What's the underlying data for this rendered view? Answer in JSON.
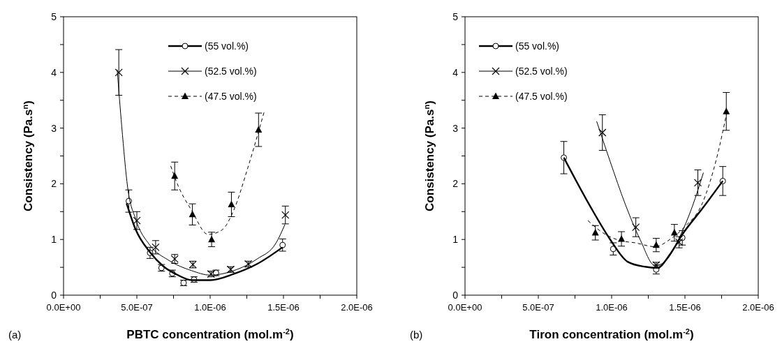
{
  "chart_data": [
    {
      "type": "scatter",
      "xlabel": "PBTC concentration (mol.m$^{-2}$)",
      "ylabel": "Consistency (Pa.s$^{n}$)",
      "annotations": [
        "(a)"
      ],
      "legend": "top right",
      "xlim": [
        0,
        2e-06
      ],
      "xticks": [
        {
          "value": 0,
          "label": "0.0E+00"
        },
        {
          "value": 2.5e-07,
          "label": null
        },
        {
          "value": 5e-07,
          "label": "5.0E-07"
        },
        {
          "value": 7.5e-07,
          "label": null
        },
        {
          "value": 1e-06,
          "label": "1.0E-06"
        },
        {
          "value": 1.25e-06,
          "label": null
        },
        {
          "value": 1.5e-06,
          "label": "1.5E-06"
        },
        {
          "value": 1.75e-06,
          "label": null
        },
        {
          "value": 2e-06,
          "label": "2.0E-06"
        }
      ],
      "ylim": [
        0,
        5
      ],
      "yticks": [
        0,
        {
          "value": 0.5,
          "label": null
        },
        1,
        {
          "value": 1.5,
          "label": null
        },
        2,
        {
          "value": 2.5,
          "label": null
        },
        3,
        {
          "value": 3.5,
          "label": null
        },
        4,
        {
          "value": 4.5,
          "label": null
        },
        5
      ],
      "series": [
        {
          "type": "scatter",
          "name": "(55 vol.%)",
          "color": "#000000",
          "marker": "circle",
          "line_style": "solid",
          "x": [
            4.45e-07,
            5.9e-07,
            6.68e-07,
            7.42e-07,
            8.19e-07,
            8.9e-07,
            1.04e-06,
            1.494e-06
          ],
          "values": [
            1.69,
            0.76,
            0.49,
            0.39,
            0.22,
            0.28,
            0.4,
            0.9
          ],
          "errors": [
            0.2,
            0.1,
            0.06,
            0.06,
            0.05,
            0.05,
            0.05,
            0.11
          ]
        },
        {
          "type": "scatter",
          "name": "(52.5 vol.%)",
          "color": "#000000",
          "marker": "cross",
          "line_style": "solid",
          "x": [
            3.77e-07,
            5e-07,
            6.28e-07,
            7.58e-07,
            8.82e-07,
            1.006e-06,
            1.14e-06,
            1.26e-06,
            1.513e-06
          ],
          "values": [
            4.0,
            1.34,
            0.86,
            0.65,
            0.55,
            0.38,
            0.46,
            0.56,
            1.44
          ],
          "errors": [
            0.41,
            0.16,
            0.12,
            0.08,
            0.06,
            0.05,
            0.05,
            0.05,
            0.16
          ]
        },
        {
          "type": "scatter",
          "name": "(47.5 vol.%)",
          "color": "#000000",
          "marker": "triangle",
          "line_style": "dashed",
          "x": [
            7.58e-07,
            8.79e-07,
            1.01e-06,
            1.145e-06,
            1.33e-06
          ],
          "values": [
            2.14,
            1.45,
            1.0,
            1.63,
            2.97
          ],
          "errors": [
            0.25,
            0.19,
            0.13,
            0.22,
            0.3
          ]
        },
        {
          "type": "line",
          "color": "#000000",
          "line_style": "solid",
          "x": [
            4.3e-07,
            4.9e-07,
            5.9e-07,
            6.8e-07,
            7.8e-07,
            8.74e-07,
            1e-06,
            1.16e-06,
            1.32e-06,
            1.494e-06
          ],
          "values": [
            1.65,
            1.19,
            0.77,
            0.52,
            0.36,
            0.27,
            0.27,
            0.38,
            0.56,
            0.86
          ]
        },
        {
          "type": "line",
          "color": "#000000",
          "line_style": "solid",
          "x": [
            3.66e-07,
            3.97e-07,
            4.37e-07,
            4.93e-07,
            5.88e-07,
            7.15e-07,
            8.74e-07,
            1e-06,
            1.16e-06,
            1.32e-06,
            1.45e-06,
            1.51e-06
          ],
          "values": [
            4.05,
            3.03,
            1.94,
            1.36,
            0.9,
            0.63,
            0.44,
            0.36,
            0.44,
            0.65,
            0.94,
            1.27
          ]
        },
        {
          "type": "line",
          "color": "#000000",
          "line_style": "dashed",
          "x": [
            7.31e-07,
            7.79e-07,
            8.74e-07,
            9.86e-07,
            1.08e-06,
            1.16e-06,
            1.256e-06,
            1.367e-06
          ],
          "values": [
            2.32,
            1.98,
            1.52,
            1.09,
            1.17,
            1.52,
            2.28,
            3.28
          ]
        }
      ]
    },
    {
      "type": "scatter",
      "xlabel": "Tiron concentration (mol.m$^{-2}$)",
      "ylabel": "Consistency (Pa.s$^{n}$)",
      "annotations": [
        "(b)"
      ],
      "legend": "top left",
      "xlim": [
        0,
        2e-06
      ],
      "xticks": [
        {
          "value": 0,
          "label": "0.0E+00"
        },
        {
          "value": 2.5e-07,
          "label": null
        },
        {
          "value": 5e-07,
          "label": "5.0E-07"
        },
        {
          "value": 7.5e-07,
          "label": null
        },
        {
          "value": 1e-06,
          "label": "1.0E-06"
        },
        {
          "value": 1.25e-06,
          "label": null
        },
        {
          "value": 1.5e-06,
          "label": "1.5E-06"
        },
        {
          "value": 1.75e-06,
          "label": null
        },
        {
          "value": 2e-06,
          "label": "2.0E-06"
        }
      ],
      "ylim": [
        0,
        5
      ],
      "yticks": [
        0,
        {
          "value": 0.5,
          "label": null
        },
        1,
        {
          "value": 1.5,
          "label": null
        },
        2,
        {
          "value": 2.5,
          "label": null
        },
        3,
        {
          "value": 3.5,
          "label": null
        },
        4,
        {
          "value": 4.5,
          "label": null
        },
        5
      ],
      "series": [
        {
          "type": "scatter",
          "name": "(55 vol.%)",
          "color": "#000000",
          "marker": "circle",
          "line_style": "solid",
          "x": [
            6.74e-07,
            1.011e-06,
            1.304e-06,
            1.482e-06,
            1.758e-06
          ],
          "values": [
            2.47,
            0.83,
            0.46,
            1.03,
            2.05
          ],
          "errors": [
            0.29,
            0.11,
            0.08,
            0.13,
            0.26
          ]
        },
        {
          "type": "scatter",
          "name": "(52.5 vol.%)",
          "color": "#000000",
          "marker": "cross",
          "line_style": "solid",
          "x": [
            9.37e-07,
            1.165e-06,
            1.304e-06,
            1.46e-06,
            1.588e-06
          ],
          "values": [
            2.92,
            1.22,
            0.54,
            0.95,
            2.02
          ],
          "errors": [
            0.32,
            0.17,
            0.05,
            0.1,
            0.23
          ]
        },
        {
          "type": "scatter",
          "name": "(47.5 vol.%)",
          "color": "#000000",
          "marker": "triangle",
          "line_style": "dashed",
          "x": [
            8.89e-07,
            1.067e-06,
            1.304e-06,
            1.428e-06,
            1.782e-06
          ],
          "values": [
            1.12,
            1.01,
            0.9,
            1.12,
            3.3
          ],
          "errors": [
            0.13,
            0.13,
            0.12,
            0.15,
            0.34
          ]
        },
        {
          "type": "line",
          "color": "#000000",
          "line_style": "solid",
          "x": [
            6.74e-07,
            8.55e-07,
            9.9e-07,
            1.109e-06,
            1.228e-06,
            1.312e-06,
            1.397e-06,
            1.482e-06,
            1.617e-06,
            1.758e-06
          ],
          "values": [
            2.47,
            1.59,
            1.0,
            0.6,
            0.51,
            0.49,
            0.73,
            1.09,
            1.55,
            2.05
          ]
        },
        {
          "type": "line",
          "color": "#000000",
          "line_style": "solid",
          "x": [
            8.98e-07,
            9.9e-07,
            1.092e-06,
            1.194e-06,
            1.296e-06,
            1.363e-06,
            1.465e-06,
            1.55e-06,
            1.626e-06
          ],
          "values": [
            3.12,
            2.4,
            1.64,
            1.0,
            0.53,
            0.6,
            1.05,
            1.59,
            2.2
          ]
        },
        {
          "type": "line",
          "color": "#000000",
          "line_style": "dashed",
          "x": [
            8.38e-07,
            9.4e-07,
            1.058e-06,
            1.16e-06,
            1.296e-06,
            1.397e-06,
            1.499e-06,
            1.617e-06,
            1.719e-06,
            1.787e-06
          ],
          "values": [
            1.34,
            1.12,
            0.98,
            0.94,
            0.87,
            1.0,
            1.23,
            1.64,
            2.49,
            3.3
          ]
        }
      ]
    }
  ]
}
